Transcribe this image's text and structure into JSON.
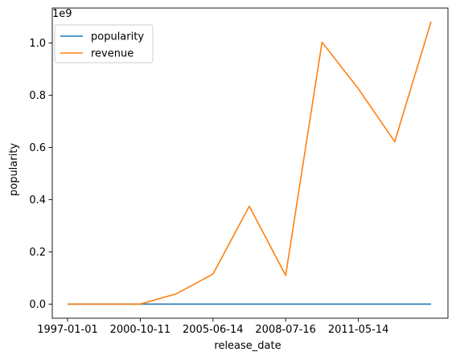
{
  "chart_data": {
    "type": "line",
    "xlabel": "release_date",
    "ylabel": "popularity",
    "y_offset_text": "1e9",
    "x_tick_labels": [
      "1997-01-01",
      "2000-10-11",
      "2005-06-14",
      "2008-07-16",
      "2011-05-14"
    ],
    "y_tick_labels": [
      "0.0",
      "0.2",
      "0.4",
      "0.6",
      "0.8",
      "1.0"
    ],
    "y_ticks": [
      0.0,
      0.2,
      0.4,
      0.6,
      0.8,
      1.0
    ],
    "ylim": [
      -0.054,
      1.134
    ],
    "grid": false,
    "legend_position": "upper-left",
    "series": [
      {
        "name": "popularity",
        "color": "#1f77b4",
        "values": [
          0,
          0,
          0,
          0,
          0,
          0,
          0,
          0,
          0,
          0,
          0
        ]
      },
      {
        "name": "revenue",
        "color": "#ff7f0e",
        "values": [
          0.0,
          0.0,
          0.0,
          0.04,
          0.115,
          0.375,
          0.11,
          1.003,
          0.825,
          0.622,
          1.082
        ]
      }
    ]
  }
}
